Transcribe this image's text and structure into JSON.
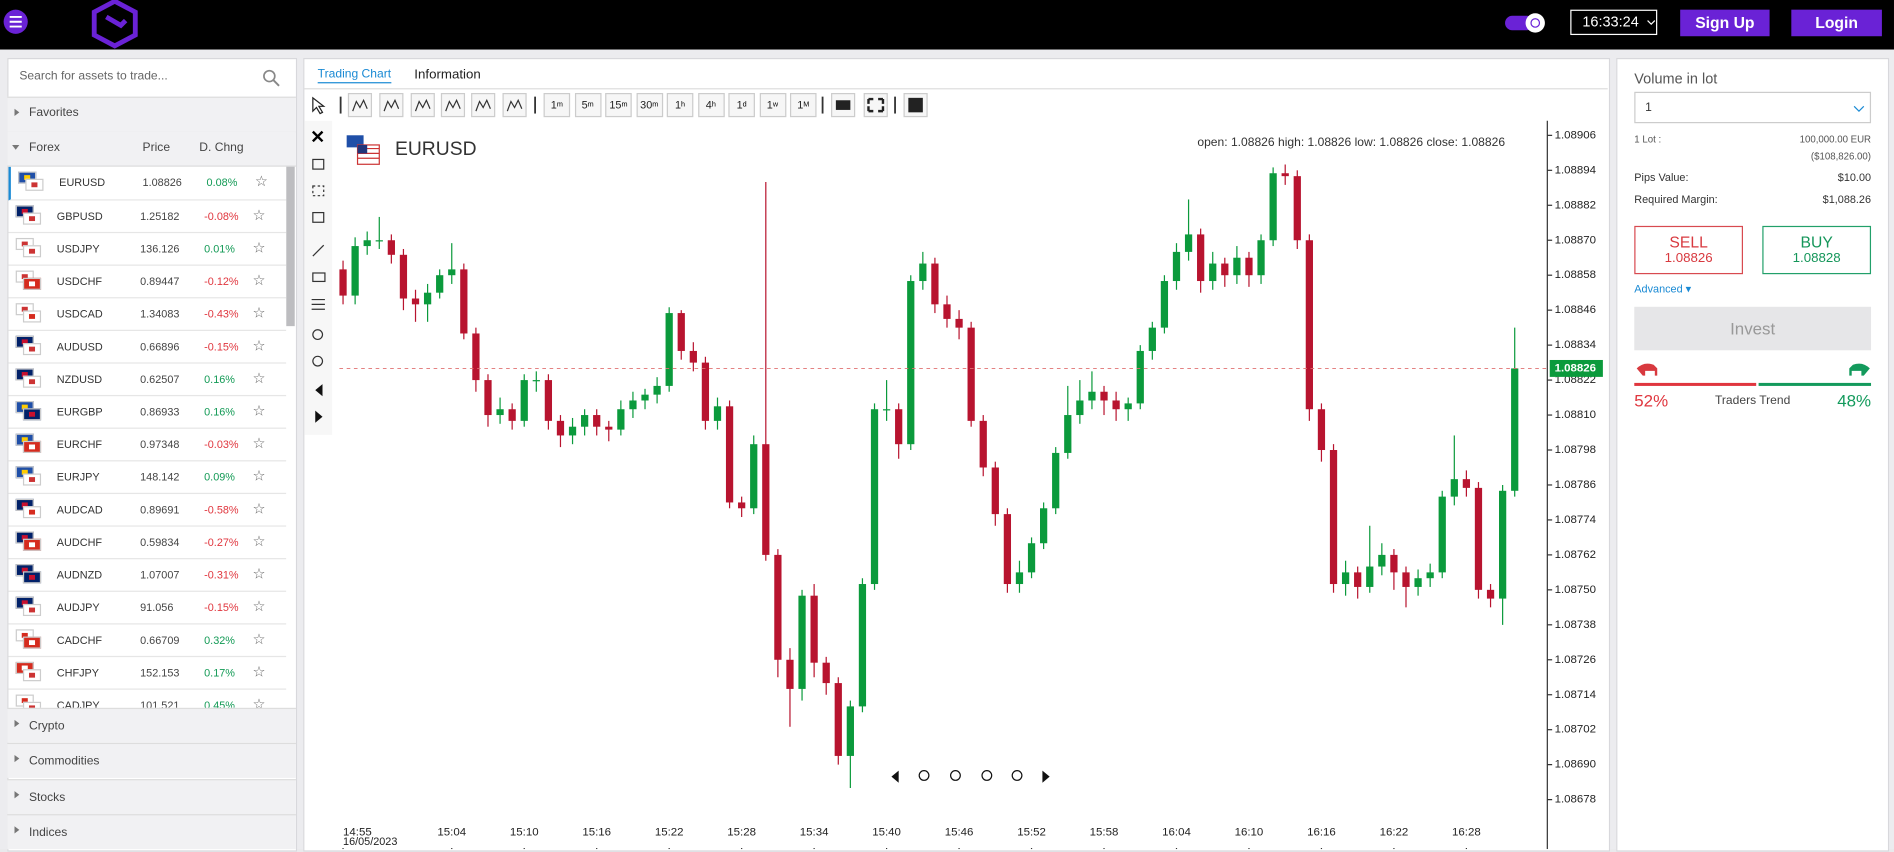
{
  "header": {
    "time": "16:33:24",
    "signup": "Sign Up",
    "login": "Login"
  },
  "sidebar": {
    "search_placeholder": "Search for assets to trade...",
    "favorites": "Favorites",
    "group": "Forex",
    "columns": [
      "Price",
      "D. Chng"
    ],
    "assets": [
      [
        "EURUSD",
        "1.08826",
        "0.08%"
      ],
      [
        "GBPUSD",
        "1.25182",
        "-0.08%"
      ],
      [
        "USDJPY",
        "136.126",
        "0.01%"
      ],
      [
        "USDCHF",
        "0.89447",
        "-0.12%"
      ],
      [
        "USDCAD",
        "1.34083",
        "-0.43%"
      ],
      [
        "AUDUSD",
        "0.66896",
        "-0.15%"
      ],
      [
        "NZDUSD",
        "0.62507",
        "0.16%"
      ],
      [
        "EURGBP",
        "0.86933",
        "0.16%"
      ],
      [
        "EURCHF",
        "0.97348",
        "-0.03%"
      ],
      [
        "EURJPY",
        "148.142",
        "0.09%"
      ],
      [
        "AUDCAD",
        "0.89691",
        "-0.58%"
      ],
      [
        "AUDCHF",
        "0.59834",
        "-0.27%"
      ],
      [
        "AUDNZD",
        "1.07007",
        "-0.31%"
      ],
      [
        "AUDJPY",
        "91.056",
        "-0.15%"
      ],
      [
        "CADCHF",
        "0.66709",
        "0.32%"
      ],
      [
        "CHFJPY",
        "152.153",
        "0.17%"
      ],
      [
        "CADJPY",
        "101.521",
        "0.45%"
      ]
    ],
    "other_groups": [
      "Crypto",
      "Commodities",
      "Stocks",
      "Indices"
    ]
  },
  "tabs": [
    "Trading Chart",
    "Information"
  ],
  "timeframes": [
    [
      "1",
      "m"
    ],
    [
      "5",
      "m"
    ],
    [
      "15",
      "m"
    ],
    [
      "30",
      "m"
    ],
    [
      "1",
      "h"
    ],
    [
      "4",
      "h"
    ],
    [
      "1",
      "d"
    ],
    [
      "1",
      "w"
    ],
    [
      "1",
      "M"
    ]
  ],
  "chart_data": {
    "type": "candlestick",
    "title": "EURUSD",
    "ohlc": [
      {
        "label": "open:",
        "value": 1.08826
      },
      {
        "label": "high:",
        "value": 1.08826
      },
      {
        "label": "low:",
        "value": 1.08826
      },
      {
        "label": "close:",
        "value": 1.08826
      }
    ],
    "up_color": "#0b9a3c",
    "down_color": "#b8142f",
    "candles": [
      [
        1.0886,
        1.08863,
        1.08848,
        1.08851
      ],
      [
        1.08851,
        1.08871,
        1.08848,
        1.08868
      ],
      [
        1.08868,
        1.08873,
        1.08865,
        1.0887
      ],
      [
        1.0887,
        1.08878,
        1.08867,
        1.0887
      ],
      [
        1.0887,
        1.08872,
        1.08862,
        1.08865
      ],
      [
        1.08865,
        1.08867,
        1.08846,
        1.0885
      ],
      [
        1.0885,
        1.08853,
        1.08842,
        1.08848
      ],
      [
        1.08848,
        1.08855,
        1.08842,
        1.08852
      ],
      [
        1.08852,
        1.0886,
        1.0885,
        1.08858
      ],
      [
        1.08858,
        1.08869,
        1.08855,
        1.0886
      ],
      [
        1.0886,
        1.08862,
        1.08836,
        1.08838
      ],
      [
        1.08838,
        1.0884,
        1.08818,
        1.08822
      ],
      [
        1.08822,
        1.08824,
        1.08806,
        1.0881
      ],
      [
        1.0881,
        1.08816,
        1.08807,
        1.08812
      ],
      [
        1.08812,
        1.08814,
        1.08805,
        1.08808
      ],
      [
        1.08808,
        1.08824,
        1.08806,
        1.08822
      ],
      [
        1.08822,
        1.08825,
        1.08818,
        1.08822
      ],
      [
        1.08822,
        1.08824,
        1.08805,
        1.08808
      ],
      [
        1.08808,
        1.0881,
        1.08799,
        1.08803
      ],
      [
        1.08803,
        1.08809,
        1.088,
        1.08806
      ],
      [
        1.08806,
        1.08812,
        1.08803,
        1.0881
      ],
      [
        1.0881,
        1.08812,
        1.08803,
        1.08806
      ],
      [
        1.08806,
        1.08808,
        1.08801,
        1.08805
      ],
      [
        1.08805,
        1.08815,
        1.08803,
        1.08812
      ],
      [
        1.08812,
        1.08818,
        1.08809,
        1.08815
      ],
      [
        1.08815,
        1.08819,
        1.08812,
        1.08817
      ],
      [
        1.08817,
        1.08823,
        1.08814,
        1.0882
      ],
      [
        1.0882,
        1.08847,
        1.08818,
        1.08845
      ],
      [
        1.08845,
        1.08846,
        1.08829,
        1.08832
      ],
      [
        1.08832,
        1.08835,
        1.08825,
        1.08828
      ],
      [
        1.08828,
        1.0883,
        1.08805,
        1.08808
      ],
      [
        1.08808,
        1.08816,
        1.08805,
        1.08813
      ],
      [
        1.08813,
        1.08815,
        1.08778,
        1.0878
      ],
      [
        1.0878,
        1.08782,
        1.08775,
        1.08778
      ],
      [
        1.08778,
        1.08803,
        1.08776,
        1.088
      ],
      [
        1.088,
        1.0889,
        1.0876,
        1.08762
      ],
      [
        1.08762,
        1.08764,
        1.0872,
        1.08726
      ],
      [
        1.08726,
        1.0873,
        1.08703,
        1.08716
      ],
      [
        1.08716,
        1.0875,
        1.08712,
        1.08748
      ],
      [
        1.08748,
        1.08752,
        1.0872,
        1.08725
      ],
      [
        1.08725,
        1.08727,
        1.08714,
        1.08718
      ],
      [
        1.08718,
        1.0872,
        1.0869,
        1.08693
      ],
      [
        1.08693,
        1.08712,
        1.08682,
        1.0871
      ],
      [
        1.0871,
        1.08754,
        1.08708,
        1.08752
      ],
      [
        1.08752,
        1.08814,
        1.0875,
        1.08812
      ],
      [
        1.08812,
        1.08822,
        1.08808,
        1.08812
      ],
      [
        1.08812,
        1.08814,
        1.08795,
        1.088
      ],
      [
        1.088,
        1.08858,
        1.08798,
        1.08856
      ],
      [
        1.08856,
        1.08866,
        1.08853,
        1.08862
      ],
      [
        1.08862,
        1.08864,
        1.08845,
        1.08848
      ],
      [
        1.08848,
        1.08851,
        1.0884,
        1.08843
      ],
      [
        1.08843,
        1.08846,
        1.08836,
        1.0884
      ],
      [
        1.0884,
        1.08842,
        1.08806,
        1.08808
      ],
      [
        1.08808,
        1.0881,
        1.08789,
        1.08792
      ],
      [
        1.08792,
        1.08794,
        1.08772,
        1.08776
      ],
      [
        1.08776,
        1.08778,
        1.08749,
        1.08752
      ],
      [
        1.08752,
        1.0876,
        1.08749,
        1.08756
      ],
      [
        1.08756,
        1.08768,
        1.08754,
        1.08766
      ],
      [
        1.08766,
        1.0878,
        1.08764,
        1.08778
      ],
      [
        1.08778,
        1.08799,
        1.08776,
        1.08797
      ],
      [
        1.08797,
        1.0882,
        1.08795,
        1.0881
      ],
      [
        1.0881,
        1.08822,
        1.08807,
        1.08815
      ],
      [
        1.08815,
        1.08825,
        1.08812,
        1.08818
      ],
      [
        1.08818,
        1.0882,
        1.0881,
        1.08815
      ],
      [
        1.08815,
        1.08818,
        1.08808,
        1.08812
      ],
      [
        1.08812,
        1.08816,
        1.08808,
        1.08814
      ],
      [
        1.08814,
        1.08834,
        1.08812,
        1.08832
      ],
      [
        1.08832,
        1.08842,
        1.08829,
        1.0884
      ],
      [
        1.0884,
        1.08858,
        1.08838,
        1.08856
      ],
      [
        1.08856,
        1.08869,
        1.08853,
        1.08866
      ],
      [
        1.08866,
        1.08884,
        1.08863,
        1.08872
      ],
      [
        1.08872,
        1.08874,
        1.08852,
        1.08856
      ],
      [
        1.08856,
        1.08866,
        1.08853,
        1.08862
      ],
      [
        1.08862,
        1.08864,
        1.08854,
        1.08858
      ],
      [
        1.08858,
        1.08868,
        1.08855,
        1.08864
      ],
      [
        1.08864,
        1.08866,
        1.08854,
        1.08858
      ],
      [
        1.08858,
        1.08872,
        1.08855,
        1.0887
      ],
      [
        1.0887,
        1.08895,
        1.08868,
        1.08893
      ],
      [
        1.08893,
        1.08896,
        1.08889,
        1.08892
      ],
      [
        1.08892,
        1.08894,
        1.08867,
        1.0887
      ],
      [
        1.0887,
        1.08872,
        1.08808,
        1.08812
      ],
      [
        1.08812,
        1.08814,
        1.08794,
        1.08798
      ],
      [
        1.08798,
        1.088,
        1.08749,
        1.08752
      ],
      [
        1.08752,
        1.0876,
        1.08748,
        1.08756
      ],
      [
        1.08756,
        1.08758,
        1.08747,
        1.08751
      ],
      [
        1.08751,
        1.08772,
        1.08749,
        1.08758
      ],
      [
        1.08758,
        1.08766,
        1.08755,
        1.08762
      ],
      [
        1.08762,
        1.08764,
        1.0875,
        1.08756
      ],
      [
        1.08756,
        1.08758,
        1.08744,
        1.08751
      ],
      [
        1.08751,
        1.08757,
        1.08748,
        1.08754
      ],
      [
        1.08754,
        1.08759,
        1.08751,
        1.08756
      ],
      [
        1.08756,
        1.08784,
        1.08754,
        1.08782
      ],
      [
        1.08782,
        1.08803,
        1.08779,
        1.08788
      ],
      [
        1.08788,
        1.08791,
        1.08782,
        1.08785
      ],
      [
        1.08785,
        1.08787,
        1.08747,
        1.0875
      ],
      [
        1.0875,
        1.08752,
        1.08744,
        1.08747
      ],
      [
        1.08747,
        1.08786,
        1.08738,
        1.08784
      ],
      [
        1.08784,
        1.0884,
        1.08782,
        1.08826
      ]
    ],
    "last_price": 1.08826,
    "ylim": [
      1.08661,
      1.08911
    ],
    "yticks": [
      1.08906,
      1.08894,
      1.08882,
      {
        "value": 1.0887,
        "label": "1.08870"
      },
      1.08858,
      1.08846,
      1.08834,
      1.08822,
      {
        "value": 1.0881,
        "label": "1.08810"
      },
      1.08798,
      1.08786,
      1.08774,
      1.08762,
      {
        "value": 1.0875,
        "label": "1.08750"
      },
      1.08738,
      1.08726,
      1.08714,
      1.08702,
      {
        "value": 1.0869,
        "label": "1.08690"
      },
      1.08678
    ],
    "xlim": [
      -0.3,
      99.7
    ],
    "xticks": [
      {
        "value": 0,
        "label": "14:55"
      },
      {
        "value": 9,
        "label": "15:04"
      },
      {
        "value": 15,
        "label": "15:10"
      },
      {
        "value": 21,
        "label": "15:16"
      },
      {
        "value": 27,
        "label": "15:22"
      },
      {
        "value": 33,
        "label": "15:28"
      },
      {
        "value": 39,
        "label": "15:34"
      },
      {
        "value": 45,
        "label": "15:40"
      },
      {
        "value": 51,
        "label": "15:46"
      },
      {
        "value": 57,
        "label": "15:52"
      },
      {
        "value": 63,
        "label": "15:58"
      },
      {
        "value": 69,
        "label": "16:04"
      },
      {
        "value": 75,
        "label": "16:10"
      },
      {
        "value": 81,
        "label": "16:16"
      },
      {
        "value": 87,
        "label": "16:22"
      },
      {
        "value": 93,
        "label": "16:28"
      }
    ],
    "date_label": "16/05/2023"
  },
  "order": {
    "volume_label": "Volume in lot",
    "volume": "1",
    "lot_label": "1 Lot :",
    "lot_value": "100,000.00 EUR",
    "lot_usd": "($108,826.00)",
    "pips_label": "Pips Value:",
    "pips_value": "$10.00",
    "margin_label": "Required Margin:",
    "margin_value": "$1,088.26",
    "sell_label": "SELL",
    "sell_price": "1.08826",
    "buy_label": "BUY",
    "buy_price": "1.08828",
    "advanced": "Advanced",
    "invest": "Invest"
  },
  "traders_trend": {
    "title": "Traders Trend",
    "values": [
      52,
      48
    ],
    "value_labels": [
      "52%",
      "48%"
    ],
    "colors": [
      "#e0363e",
      "#139a5c"
    ]
  }
}
